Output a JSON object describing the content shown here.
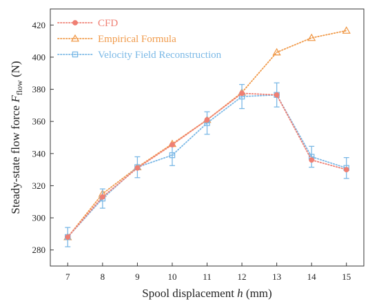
{
  "chart_data": {
    "type": "line",
    "title": "",
    "xlabel": {
      "main": "Spool displacement ",
      "var": "h",
      "unit": " (mm)"
    },
    "ylabel": {
      "main": "Steady-state flow force ",
      "var": "F",
      "sub": "flow",
      "unit": " (N)"
    },
    "x": [
      7,
      8,
      9,
      10,
      11,
      12,
      13,
      14,
      15
    ],
    "xlim": [
      6.5,
      15.5
    ],
    "ylim": [
      270,
      430
    ],
    "xticks": [
      "7",
      "8",
      "9",
      "10",
      "11",
      "12",
      "13",
      "14",
      "15"
    ],
    "yticks": [
      "280",
      "300",
      "320",
      "340",
      "360",
      "380",
      "400",
      "420"
    ],
    "legend_position": "top-left",
    "series": [
      {
        "name": "CFD",
        "color": "#ef7f73",
        "marker": "circle",
        "values": [
          288,
          313,
          331,
          345.5,
          361,
          377.5,
          376.5,
          336,
          330
        ]
      },
      {
        "name": "Empirical Formula",
        "color": "#f09a4a",
        "marker": "triangle",
        "values": [
          288,
          315,
          331.5,
          346,
          361,
          378,
          403,
          412,
          416.5
        ]
      },
      {
        "name": "Velocity Field Reconstruction",
        "color": "#7ab8e6",
        "marker": "square",
        "values": [
          288,
          312,
          331.5,
          339,
          359,
          375.5,
          376.5,
          338,
          331
        ],
        "error": [
          6,
          6,
          6.5,
          6.5,
          7,
          7.5,
          7.5,
          6.5,
          6.5
        ]
      }
    ]
  }
}
